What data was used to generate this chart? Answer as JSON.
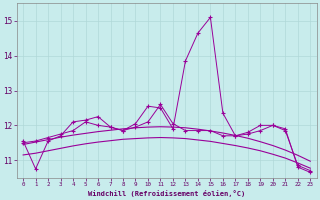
{
  "xlabel": "Windchill (Refroidissement éolien,°C)",
  "background_color": "#c8ecec",
  "grid_color": "#b0d8d8",
  "line_color": "#990099",
  "x_values": [
    0,
    1,
    2,
    3,
    4,
    5,
    6,
    7,
    8,
    9,
    10,
    11,
    12,
    13,
    14,
    15,
    16,
    17,
    18,
    19,
    20,
    21,
    22,
    23
  ],
  "series1": [
    11.55,
    10.75,
    11.55,
    11.7,
    12.1,
    12.15,
    12.25,
    11.95,
    11.85,
    12.05,
    12.55,
    12.5,
    11.9,
    13.85,
    14.65,
    15.1,
    12.35,
    11.7,
    11.75,
    11.85,
    12.0,
    11.85,
    10.85,
    10.7
  ],
  "series2": [
    11.5,
    11.55,
    11.65,
    11.75,
    11.85,
    12.1,
    12.0,
    11.95,
    11.85,
    11.95,
    12.1,
    12.6,
    12.05,
    11.85,
    11.85,
    11.85,
    11.7,
    11.7,
    11.8,
    12.0,
    12.0,
    11.9,
    10.8,
    10.65
  ],
  "series3_smooth": [
    11.15,
    11.2,
    11.27,
    11.34,
    11.41,
    11.47,
    11.52,
    11.56,
    11.6,
    11.62,
    11.64,
    11.65,
    11.64,
    11.62,
    11.58,
    11.54,
    11.48,
    11.42,
    11.35,
    11.27,
    11.17,
    11.06,
    10.92,
    10.77
  ],
  "series4_smooth": [
    11.45,
    11.52,
    11.59,
    11.66,
    11.72,
    11.77,
    11.82,
    11.86,
    11.9,
    11.93,
    11.95,
    11.96,
    11.95,
    11.93,
    11.89,
    11.84,
    11.78,
    11.71,
    11.63,
    11.53,
    11.42,
    11.29,
    11.14,
    10.97
  ],
  "ylim": [
    10.5,
    15.5
  ],
  "yticks": [
    11,
    12,
    13,
    14,
    15
  ],
  "xlim": [
    -0.5,
    23.5
  ],
  "xticks": [
    0,
    1,
    2,
    3,
    4,
    5,
    6,
    7,
    8,
    9,
    10,
    11,
    12,
    13,
    14,
    15,
    16,
    17,
    18,
    19,
    20,
    21,
    22,
    23
  ]
}
